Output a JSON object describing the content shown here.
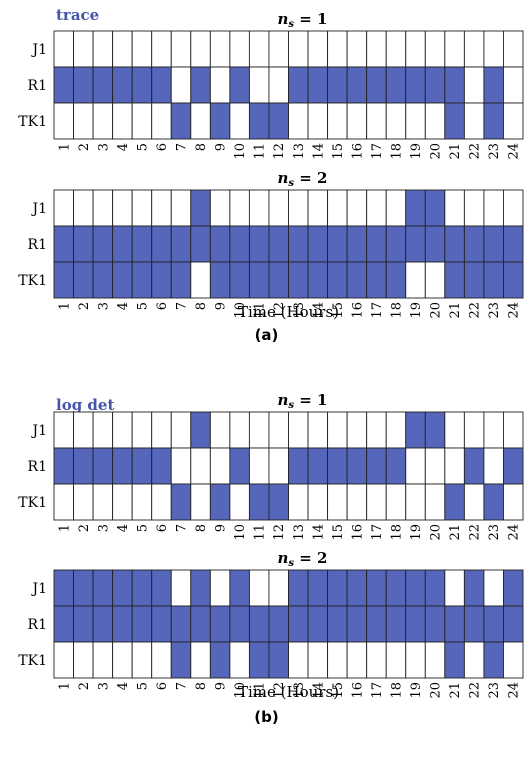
{
  "colors": {
    "on": "#5566bb",
    "off": "#ffffff",
    "grid": "#222222",
    "title": "#4455aa"
  },
  "hours": [
    "1",
    "2",
    "3",
    "4",
    "5",
    "6",
    "7",
    "8",
    "9",
    "10",
    "11",
    "12",
    "13",
    "14",
    "15",
    "16",
    "17",
    "18",
    "19",
    "20",
    "21",
    "22",
    "23",
    "24"
  ],
  "chart_data": [
    {
      "type": "heatmap",
      "panel": "(a)",
      "method_label": "trace",
      "xlabel": "Time (Hours)",
      "subplots": [
        {
          "title": "n_s = 1",
          "rows": [
            {
              "label": "J1",
              "values": [
                0,
                0,
                0,
                0,
                0,
                0,
                0,
                0,
                0,
                0,
                0,
                0,
                0,
                0,
                0,
                0,
                0,
                0,
                0,
                0,
                0,
                0,
                0,
                0
              ]
            },
            {
              "label": "R1",
              "values": [
                1,
                1,
                1,
                1,
                1,
                1,
                0,
                1,
                0,
                1,
                0,
                0,
                1,
                1,
                1,
                1,
                1,
                1,
                1,
                1,
                1,
                0,
                1,
                0
              ]
            },
            {
              "label": "TK1",
              "values": [
                0,
                0,
                0,
                0,
                0,
                0,
                1,
                0,
                1,
                0,
                1,
                1,
                0,
                0,
                0,
                0,
                0,
                0,
                0,
                0,
                1,
                0,
                1,
                0
              ]
            }
          ]
        },
        {
          "title": "n_s = 2",
          "rows": [
            {
              "label": "J1",
              "values": [
                0,
                0,
                0,
                0,
                0,
                0,
                0,
                1,
                0,
                0,
                0,
                0,
                0,
                0,
                0,
                0,
                0,
                0,
                1,
                1,
                0,
                0,
                0,
                0
              ]
            },
            {
              "label": "R1",
              "values": [
                1,
                1,
                1,
                1,
                1,
                1,
                1,
                1,
                1,
                1,
                1,
                1,
                1,
                1,
                1,
                1,
                1,
                1,
                1,
                1,
                1,
                1,
                1,
                1
              ]
            },
            {
              "label": "TK1",
              "values": [
                1,
                1,
                1,
                1,
                1,
                1,
                1,
                0,
                1,
                1,
                1,
                1,
                1,
                1,
                1,
                1,
                1,
                1,
                0,
                0,
                1,
                1,
                1,
                1
              ]
            }
          ]
        }
      ]
    },
    {
      "type": "heatmap",
      "panel": "(b)",
      "method_label": "log det",
      "xlabel": "Time (Hours)",
      "subplots": [
        {
          "title": "n_s = 1",
          "rows": [
            {
              "label": "J1",
              "values": [
                0,
                0,
                0,
                0,
                0,
                0,
                0,
                1,
                0,
                0,
                0,
                0,
                0,
                0,
                0,
                0,
                0,
                0,
                1,
                1,
                0,
                0,
                0,
                0
              ]
            },
            {
              "label": "R1",
              "values": [
                1,
                1,
                1,
                1,
                1,
                1,
                0,
                0,
                0,
                1,
                0,
                0,
                1,
                1,
                1,
                1,
                1,
                1,
                0,
                0,
                0,
                1,
                0,
                1
              ]
            },
            {
              "label": "TK1",
              "values": [
                0,
                0,
                0,
                0,
                0,
                0,
                1,
                0,
                1,
                0,
                1,
                1,
                0,
                0,
                0,
                0,
                0,
                0,
                0,
                0,
                1,
                0,
                1,
                0
              ]
            }
          ]
        },
        {
          "title": "n_s = 2",
          "rows": [
            {
              "label": "J1",
              "values": [
                1,
                1,
                1,
                1,
                1,
                1,
                0,
                1,
                0,
                1,
                0,
                0,
                1,
                1,
                1,
                1,
                1,
                1,
                1,
                1,
                0,
                1,
                0,
                1
              ]
            },
            {
              "label": "R1",
              "values": [
                1,
                1,
                1,
                1,
                1,
                1,
                1,
                1,
                1,
                1,
                1,
                1,
                1,
                1,
                1,
                1,
                1,
                1,
                1,
                1,
                1,
                1,
                1,
                1
              ]
            },
            {
              "label": "TK1",
              "values": [
                0,
                0,
                0,
                0,
                0,
                0,
                1,
                0,
                1,
                0,
                1,
                1,
                0,
                0,
                0,
                0,
                0,
                0,
                0,
                0,
                1,
                0,
                1,
                0
              ]
            }
          ]
        }
      ]
    }
  ]
}
